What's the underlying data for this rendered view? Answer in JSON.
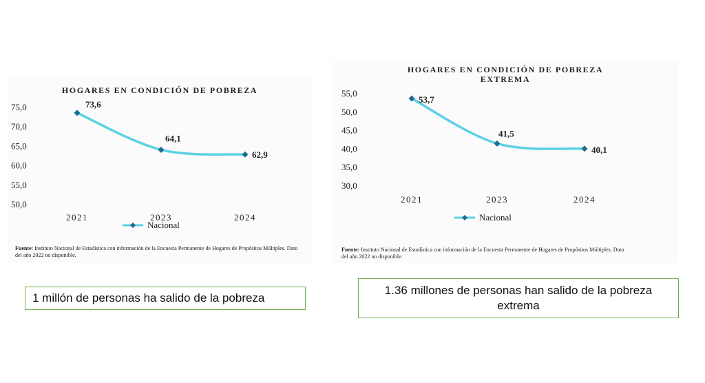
{
  "chart_data": [
    {
      "type": "line",
      "title": "HOGARES EN CONDICIÓN DE POBREZA",
      "categories": [
        "2021",
        "2023",
        "2024"
      ],
      "series": [
        {
          "name": "Nacional",
          "values": [
            73.6,
            64.1,
            62.9
          ]
        }
      ],
      "data_labels": [
        "73,6",
        "64,1",
        "62,9"
      ],
      "yticks": [
        "50,0",
        "55,0",
        "60,0",
        "65,0",
        "70,0",
        "75,0"
      ],
      "ylim": [
        50,
        75
      ],
      "grid": false,
      "legend_position": "bottom",
      "line_color": "#5cd1e6",
      "marker_color": "#1f6b8c"
    },
    {
      "type": "line",
      "title": "HOGARES EN CONDICIÓN DE POBREZA EXTREMA",
      "title_lines": [
        "HOGARES EN CONDICIÓN DE POBREZA",
        "EXTREMA"
      ],
      "categories": [
        "2021",
        "2023",
        "2024"
      ],
      "series": [
        {
          "name": "Nacional",
          "values": [
            53.7,
            41.5,
            40.1
          ]
        }
      ],
      "data_labels": [
        "53,7",
        "41,5",
        "40,1"
      ],
      "yticks": [
        "30,0",
        "35,0",
        "40,0",
        "45,0",
        "50,0",
        "55,0"
      ],
      "ylim": [
        30,
        55
      ],
      "grid": false,
      "legend_position": "bottom",
      "line_color": "#5cd1e6",
      "marker_color": "#1f6b8c"
    }
  ],
  "source_notes": {
    "label": "Fuente:",
    "left": {
      "line1": "Instituto Nacional de Estadística con información de la Encuesta Permanente de Hogares de Propósitos Múltiples. Dato",
      "line2": "del año 2022 no disponible."
    },
    "right": {
      "line1": "Instituto Nacional de Estadística con información de la Encuesta Permanente de Hogares de Propósitos Múltiples. Dato",
      "line2": "del año 2022 no disponible."
    }
  },
  "callouts": {
    "left": "1 millón de personas ha salido de la pobreza",
    "right": "1.36 millones de personas han salido de la pobreza extrema"
  },
  "colors": {
    "callout_border": "#70ad47"
  }
}
